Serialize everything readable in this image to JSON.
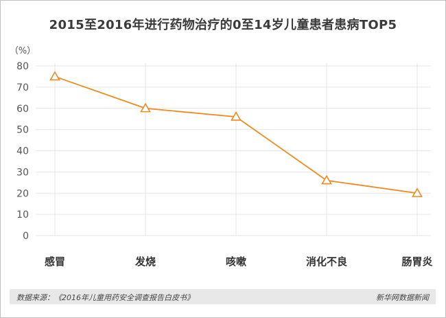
{
  "title": "2015至2016年进行药物治疗的0至14岁儿童患者患病TOP5",
  "footer": {
    "source": "数据来源：《2016年儿童用药安全调查报告白皮书》",
    "brand": "新华网数据新闻"
  },
  "chart_data": {
    "type": "line",
    "title": "2015至2016年进行药物治疗的0至14岁儿童患者患病TOP5",
    "ylabel": "（%）",
    "xlabel": "",
    "categories": [
      "感冒",
      "发烧",
      "咳嗽",
      "消化不良",
      "肠胃炎"
    ],
    "values": [
      75,
      60,
      56,
      26,
      20
    ],
    "yticks": [
      0,
      10,
      20,
      30,
      40,
      50,
      60,
      70,
      80
    ],
    "ylim": [
      0,
      80
    ],
    "grid": true,
    "marker": "triangle",
    "color": "#f08a1e"
  }
}
